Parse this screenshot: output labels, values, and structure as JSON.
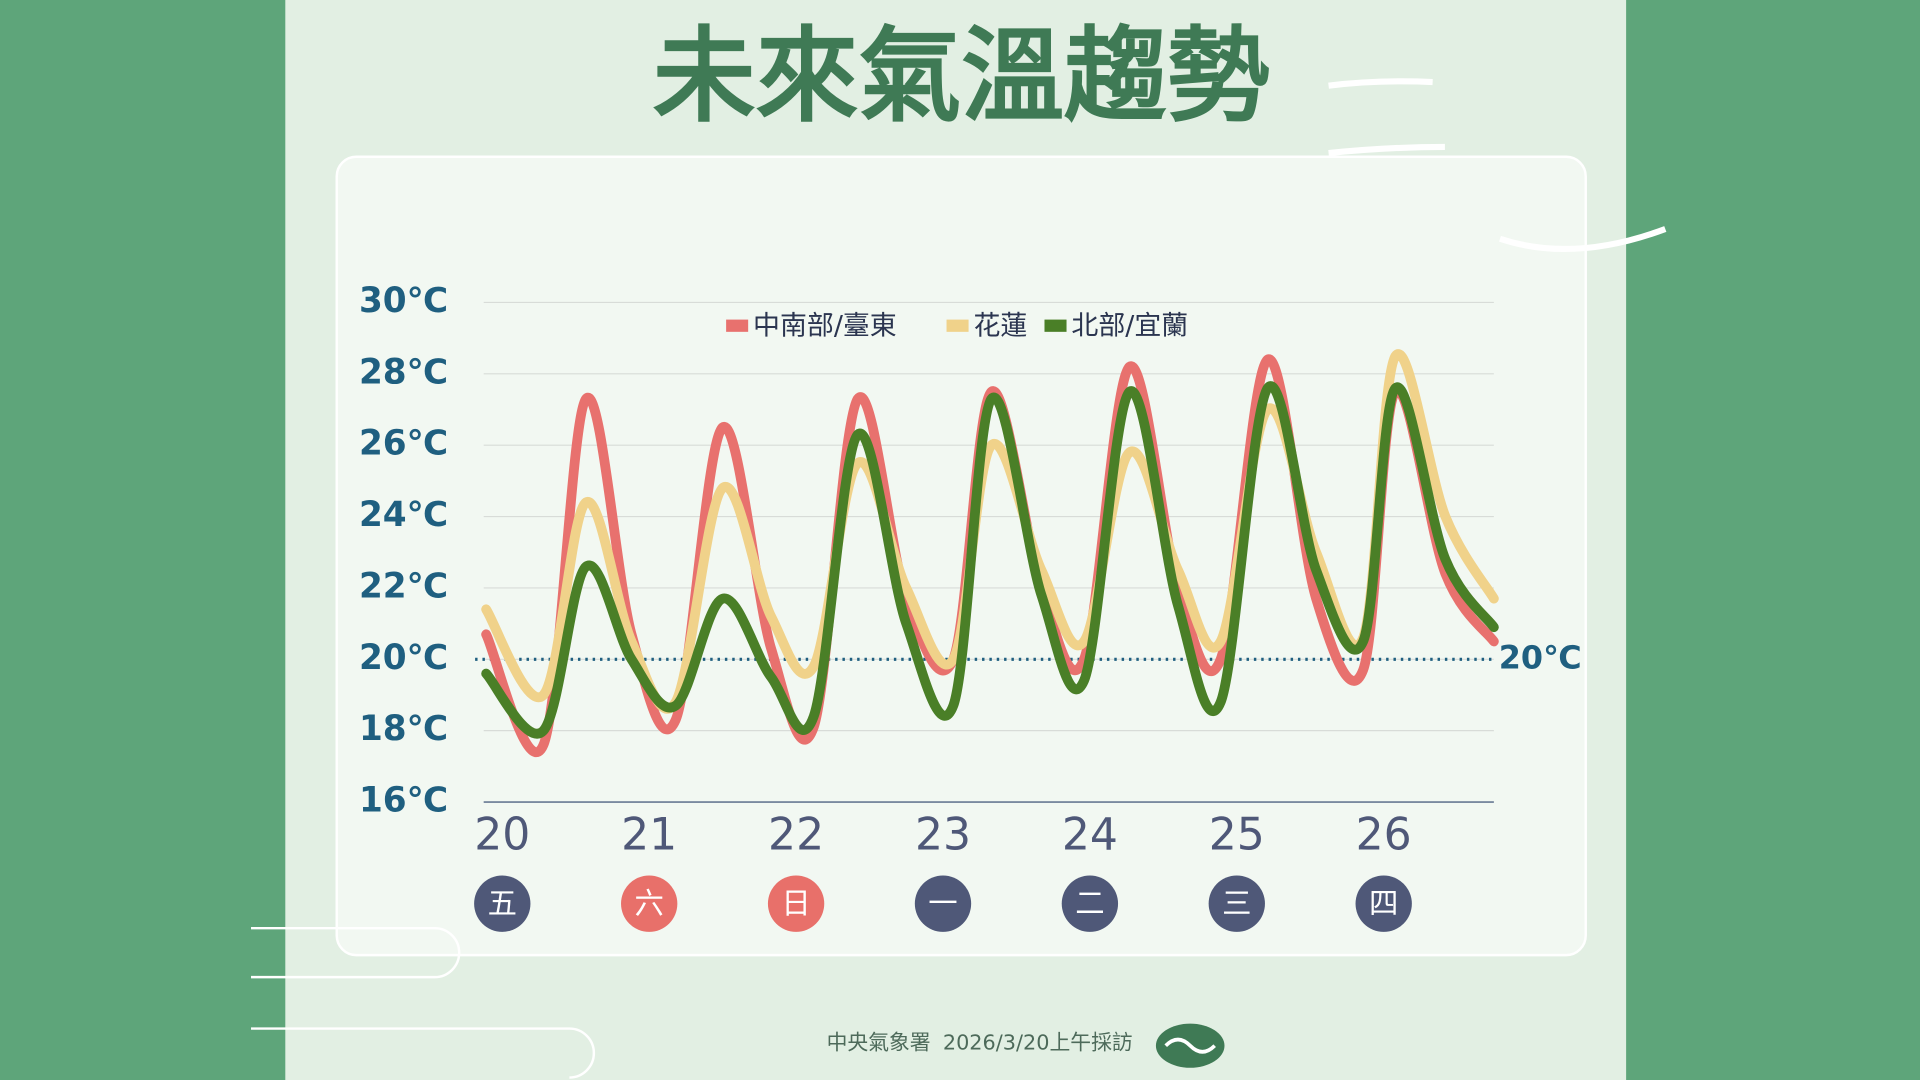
{
  "chart_data": {
    "type": "line",
    "title": "未來氣溫趨勢",
    "x": [
      19.89,
      20.28,
      20.57,
      20.88,
      21.18,
      21.5,
      21.83,
      22.12,
      22.42,
      22.75,
      23.07,
      23.33,
      23.67,
      23.96,
      24.27,
      24.6,
      24.89,
      25.21,
      25.54,
      25.86,
      26.08,
      26.42,
      26.75
    ],
    "xlim": [
      19.89,
      26.75
    ],
    "xticks": [
      20,
      21,
      22,
      23,
      24,
      25,
      26
    ],
    "weekdays": [
      "五",
      "六",
      "日",
      "一",
      "二",
      "三",
      "四"
    ],
    "weekday_colors": [
      "#4f5878",
      "#e8706a",
      "#e8706a",
      "#4f5878",
      "#4f5878",
      "#4f5878",
      "#4f5878"
    ],
    "ylim": [
      16,
      30
    ],
    "yticks": [
      {
        "value": 16,
        "label": "16℃"
      },
      {
        "value": 18,
        "label": "18℃"
      },
      {
        "value": 20,
        "label": "20℃"
      },
      {
        "value": 22,
        "label": "22℃"
      },
      {
        "value": 24,
        "label": "24℃"
      },
      {
        "value": 26,
        "label": "26℃"
      },
      {
        "value": 28,
        "label": "28℃"
      },
      {
        "value": 30,
        "label": "30℃"
      }
    ],
    "grid": true,
    "reference_line": {
      "value": 20,
      "label": "20℃"
    },
    "series": [
      {
        "name": "中南部/臺東",
        "color": "#e8716e",
        "values": [
          20.7,
          17.6,
          27.3,
          20.7,
          18.3,
          26.5,
          20.3,
          18.1,
          27.3,
          21.7,
          20.0,
          27.5,
          22.0,
          20.0,
          28.2,
          22.0,
          20.0,
          28.4,
          21.7,
          19.7,
          27.5,
          22.4,
          20.5
        ]
      },
      {
        "name": "花蓮",
        "color": "#f0d28a",
        "values": [
          21.4,
          19.0,
          24.4,
          20.5,
          18.8,
          24.8,
          21.2,
          19.8,
          25.5,
          22.0,
          20.0,
          26.0,
          22.5,
          20.5,
          25.8,
          22.5,
          20.5,
          27.0,
          23.0,
          20.6,
          28.5,
          24.0,
          21.7
        ]
      },
      {
        "name": "北部/宜蘭",
        "color": "#4a7f27",
        "values": [
          19.6,
          18.0,
          22.6,
          20.0,
          18.7,
          21.7,
          19.5,
          18.4,
          26.3,
          21.0,
          18.7,
          27.3,
          21.8,
          19.4,
          27.5,
          21.5,
          18.8,
          27.6,
          22.5,
          20.5,
          27.6,
          22.8,
          20.9
        ]
      }
    ],
    "source": "中央氣象署",
    "date_note": "2026/3/20上午採訪"
  }
}
